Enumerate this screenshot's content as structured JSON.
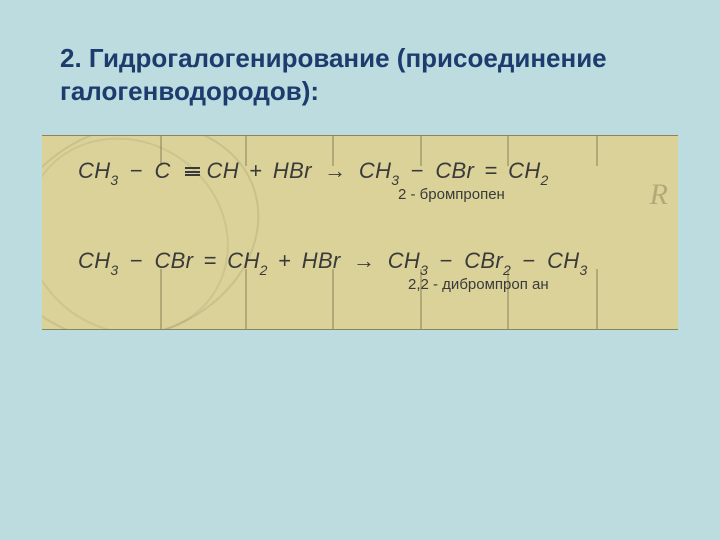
{
  "slide": {
    "background_color": "#bddce0",
    "title": "2. Гидрогалогенирование (присоединение галогенводородов):",
    "title_color": "#1c3c6e",
    "title_fontsize": 26
  },
  "panel": {
    "background_color": "#dbd299",
    "tick_positions_top": [
      118,
      203,
      290,
      378,
      465,
      554
    ],
    "tick_positions_bottom": [
      118,
      203,
      290,
      378,
      465,
      554
    ],
    "bg_text_left": "",
    "bg_text_right": "R"
  },
  "equations": {
    "eq1": {
      "lhs_a": {
        "base": "CH",
        "sub": "3"
      },
      "lhs_b": {
        "base": "C",
        "sub": ""
      },
      "lhs_c": {
        "base": "CH",
        "sub": ""
      },
      "reagent": {
        "base": "HBr",
        "sub": ""
      },
      "rhs_a": {
        "base": "CH",
        "sub": "3"
      },
      "rhs_b": {
        "base": "CBr",
        "sub": ""
      },
      "rhs_c": {
        "base": "CH",
        "sub": "2"
      },
      "bond_lhs": "triple",
      "bond_rhs": "double",
      "annotation": "2 - бромпропен"
    },
    "eq2": {
      "lhs_a": {
        "base": "CH",
        "sub": "3"
      },
      "lhs_b": {
        "base": "CBr",
        "sub": ""
      },
      "lhs_c": {
        "base": "CH",
        "sub": "2"
      },
      "reagent": {
        "base": "HBr",
        "sub": ""
      },
      "rhs_a": {
        "base": "CH",
        "sub": "3"
      },
      "rhs_b": {
        "base": "CBr",
        "sub": "2"
      },
      "rhs_c": {
        "base": "CH",
        "sub": "3"
      },
      "bond_lhs": "double",
      "bond_rhs": "single",
      "annotation": "2,2 - дибромпроп ан"
    },
    "symbols": {
      "dash": "−",
      "equals": "=",
      "plus": "+",
      "arrow": "→"
    }
  }
}
